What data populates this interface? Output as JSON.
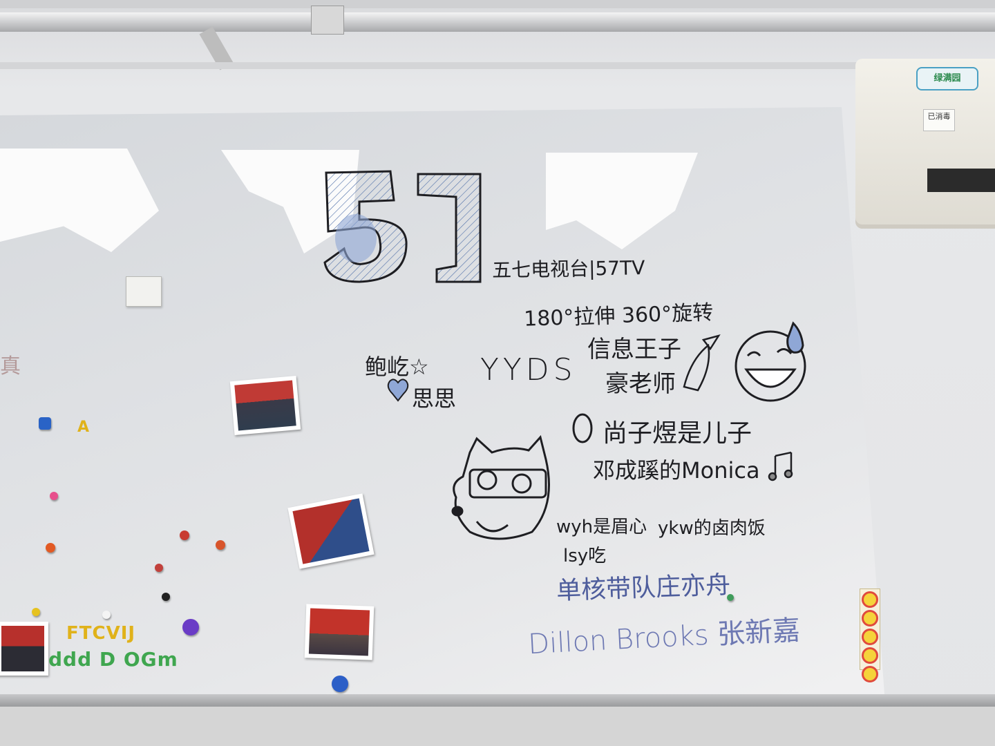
{
  "scene": {
    "aircon_brand": "绿满园",
    "aircon_tag": "已消毒"
  },
  "board": {
    "logo_text": "57",
    "station_name": "五七电视台|57TV",
    "line_stretch": "180°拉伸 360°旋转",
    "bao_name": "鲍屹☆",
    "bao_second": "思思",
    "yyds": "YYDS",
    "prince": "信息王子",
    "teacher": "豪老师",
    "shang_line": "尚子煜是儿子",
    "deng_line": "邓成蹊的Monica",
    "wyh_line": "wyh是眉心",
    "ykw_line": "ykw的卤肉饭",
    "lsy_line": "lsy吃",
    "blue_line": "单核带队庄亦舟",
    "dillon_line": "Dillon Brooks 张新嘉",
    "left_edge_char": "真"
  },
  "magnets": {
    "letter_a": "A",
    "row1": "FTCVIJ",
    "row2": "ddd D OGm"
  },
  "colors": {
    "ink": "#1e1e22",
    "blue_ink": "#4e5d9c",
    "lavender_ink": "#6e79b3",
    "board": "#e2e4e6"
  }
}
